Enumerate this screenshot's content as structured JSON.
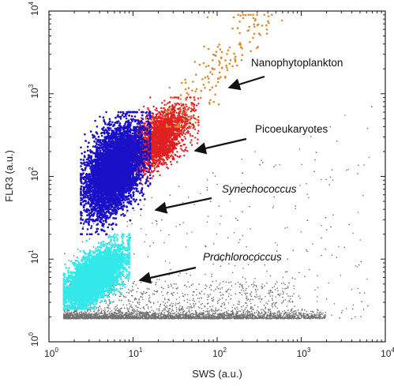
{
  "chart_data": {
    "type": "scatter",
    "title": "",
    "xlabel": "SWS (a.u.)",
    "ylabel": "FLR3 (a.u.)",
    "xscale": "log",
    "yscale": "log",
    "xlim": [
      1,
      10000
    ],
    "ylim": [
      1,
      10000
    ],
    "x_ticks": [
      {
        "base": "10",
        "exp": "0"
      },
      {
        "base": "10",
        "exp": "1"
      },
      {
        "base": "10",
        "exp": "2"
      },
      {
        "base": "10",
        "exp": "3"
      },
      {
        "base": "10",
        "exp": "4"
      }
    ],
    "y_ticks": [
      {
        "base": "10",
        "exp": "0"
      },
      {
        "base": "10",
        "exp": "1"
      },
      {
        "base": "10",
        "exp": "2"
      },
      {
        "base": "10",
        "exp": "3"
      },
      {
        "base": "10",
        "exp": "4"
      }
    ],
    "grid": false,
    "series": [
      {
        "name": "Nanophytoplankton",
        "color": "#e08a2e",
        "italic": false,
        "cluster": {
          "x_range": [
            25,
            600
          ],
          "y_range": [
            400,
            9000
          ],
          "n": 170
        }
      },
      {
        "name": "Picoeukaryotes",
        "color": "#e02020",
        "italic": false,
        "cluster": {
          "x_center": 20,
          "y_center": 280,
          "x_range": [
            7,
            60
          ],
          "y_range": [
            80,
            900
          ],
          "n": 2500
        }
      },
      {
        "name": "Synechococcus",
        "color": "#1a10c8",
        "italic": true,
        "cluster": {
          "x_center": 6,
          "y_center": 120,
          "x_range": [
            2.4,
            16
          ],
          "y_range": [
            20,
            600
          ],
          "n": 7000
        }
      },
      {
        "name": "Prochlorococcus",
        "color": "#33e8e8",
        "italic": true,
        "cluster": {
          "x_center": 3.5,
          "y_center": 6,
          "x_range": [
            1.5,
            9
          ],
          "y_range": [
            2.5,
            20
          ],
          "n": 4500
        }
      },
      {
        "name": "",
        "color": "#707070",
        "role": "background events",
        "cluster": {
          "x_range": [
            1.5,
            7000
          ],
          "y_range": [
            1.9,
            800
          ],
          "n": 5000
        }
      }
    ]
  }
}
